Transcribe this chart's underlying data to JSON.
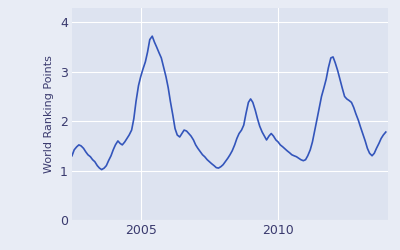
{
  "ylabel": "World Ranking Points",
  "xlim_start": 2002.5,
  "xlim_end": 2014.0,
  "ylim": [
    0,
    4.3
  ],
  "yticks": [
    0,
    1,
    2,
    3,
    4
  ],
  "xticks": [
    2005,
    2010
  ],
  "line_color": "#3355bb",
  "bg_color": "#dde3f0",
  "outer_bg": "#e8ecf5",
  "grid_color": "#ffffff",
  "linewidth": 1.2,
  "data_years": [
    2002.5,
    2002.58,
    2002.67,
    2002.75,
    2002.83,
    2002.92,
    2003.0,
    2003.08,
    2003.17,
    2003.25,
    2003.33,
    2003.42,
    2003.5,
    2003.58,
    2003.67,
    2003.75,
    2003.83,
    2003.92,
    2004.0,
    2004.08,
    2004.17,
    2004.25,
    2004.33,
    2004.42,
    2004.5,
    2004.58,
    2004.67,
    2004.75,
    2004.83,
    2004.92,
    2005.0,
    2005.08,
    2005.17,
    2005.25,
    2005.33,
    2005.42,
    2005.5,
    2005.58,
    2005.67,
    2005.75,
    2005.83,
    2005.92,
    2006.0,
    2006.08,
    2006.17,
    2006.25,
    2006.33,
    2006.42,
    2006.5,
    2006.58,
    2006.67,
    2006.75,
    2006.83,
    2006.92,
    2007.0,
    2007.08,
    2007.17,
    2007.25,
    2007.33,
    2007.42,
    2007.5,
    2007.58,
    2007.67,
    2007.75,
    2007.83,
    2007.92,
    2008.0,
    2008.08,
    2008.17,
    2008.25,
    2008.33,
    2008.42,
    2008.5,
    2008.58,
    2008.67,
    2008.75,
    2008.83,
    2008.92,
    2009.0,
    2009.08,
    2009.17,
    2009.25,
    2009.33,
    2009.42,
    2009.5,
    2009.58,
    2009.67,
    2009.75,
    2009.83,
    2009.92,
    2010.0,
    2010.08,
    2010.17,
    2010.25,
    2010.33,
    2010.42,
    2010.5,
    2010.58,
    2010.67,
    2010.75,
    2010.83,
    2010.92,
    2011.0,
    2011.08,
    2011.17,
    2011.25,
    2011.33,
    2011.42,
    2011.5,
    2011.58,
    2011.67,
    2011.75,
    2011.83,
    2011.92,
    2012.0,
    2012.08,
    2012.17,
    2012.25,
    2012.33,
    2012.42,
    2012.5,
    2012.58,
    2012.67,
    2012.75,
    2012.83,
    2012.92,
    2013.0,
    2013.08,
    2013.17,
    2013.25,
    2013.33,
    2013.42,
    2013.5,
    2013.58,
    2013.67,
    2013.75,
    2013.83,
    2013.92
  ],
  "data_values": [
    1.3,
    1.42,
    1.48,
    1.52,
    1.5,
    1.45,
    1.38,
    1.32,
    1.28,
    1.22,
    1.18,
    1.1,
    1.05,
    1.02,
    1.05,
    1.1,
    1.2,
    1.3,
    1.42,
    1.52,
    1.6,
    1.55,
    1.52,
    1.58,
    1.65,
    1.72,
    1.82,
    2.05,
    2.4,
    2.72,
    2.9,
    3.05,
    3.2,
    3.4,
    3.65,
    3.72,
    3.6,
    3.5,
    3.38,
    3.28,
    3.1,
    2.9,
    2.68,
    2.4,
    2.12,
    1.85,
    1.72,
    1.68,
    1.75,
    1.82,
    1.8,
    1.75,
    1.7,
    1.62,
    1.52,
    1.45,
    1.38,
    1.32,
    1.28,
    1.22,
    1.18,
    1.14,
    1.1,
    1.06,
    1.05,
    1.08,
    1.12,
    1.18,
    1.25,
    1.32,
    1.4,
    1.52,
    1.65,
    1.75,
    1.82,
    1.92,
    2.15,
    2.38,
    2.45,
    2.38,
    2.22,
    2.05,
    1.9,
    1.78,
    1.7,
    1.62,
    1.7,
    1.75,
    1.7,
    1.62,
    1.58,
    1.52,
    1.48,
    1.44,
    1.4,
    1.36,
    1.32,
    1.3,
    1.28,
    1.25,
    1.22,
    1.2,
    1.22,
    1.3,
    1.42,
    1.58,
    1.8,
    2.05,
    2.28,
    2.5,
    2.68,
    2.85,
    3.08,
    3.28,
    3.3,
    3.18,
    3.02,
    2.85,
    2.68,
    2.5,
    2.45,
    2.42,
    2.38,
    2.28,
    2.15,
    2.02,
    1.88,
    1.75,
    1.6,
    1.45,
    1.35,
    1.3,
    1.35,
    1.45,
    1.55,
    1.65,
    1.72,
    1.78
  ]
}
